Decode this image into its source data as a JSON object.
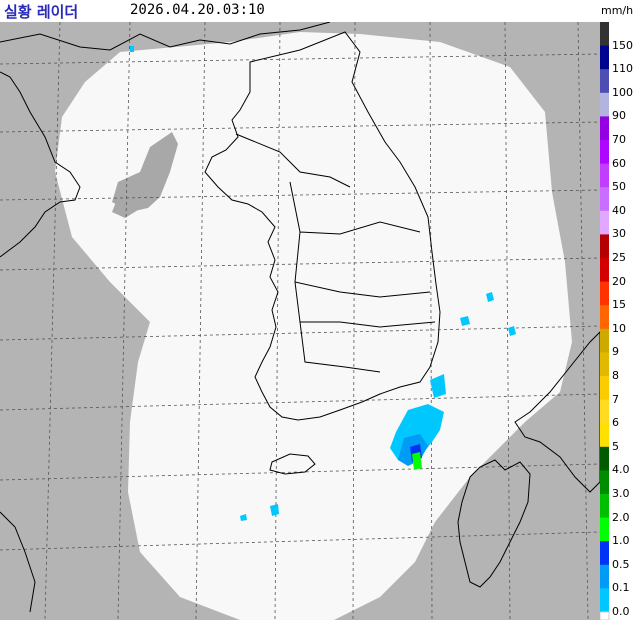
{
  "header": {
    "title": "실황 레이더",
    "timestamp": "2026.04.20.03:10",
    "unit": "mm/h"
  },
  "legend": {
    "items": [
      {
        "label": "150",
        "color": "#333333"
      },
      {
        "label": "110",
        "color": "#000390"
      },
      {
        "label": "100",
        "color": "#4c4eb1"
      },
      {
        "label": "90",
        "color": "#b3b4de"
      },
      {
        "label": "70",
        "color": "#9300e4"
      },
      {
        "label": "60",
        "color": "#ad07ff"
      },
      {
        "label": "50",
        "color": "#c13eff"
      },
      {
        "label": "40",
        "color": "#c96eff"
      },
      {
        "label": "30",
        "color": "#e0a9ff"
      },
      {
        "label": "25",
        "color": "#b40000"
      },
      {
        "label": "20",
        "color": "#d20000"
      },
      {
        "label": "15",
        "color": "#ff3200"
      },
      {
        "label": "10",
        "color": "#ff6600"
      },
      {
        "label": "9",
        "color": "#ccaa00"
      },
      {
        "label": "8",
        "color": "#e0b900"
      },
      {
        "label": "7",
        "color": "#f9cd00"
      },
      {
        "label": "6",
        "color": "#ffdc1f"
      },
      {
        "label": "5",
        "color": "#ffe100"
      },
      {
        "label": "4.0",
        "color": "#005a00"
      },
      {
        "label": "3.0",
        "color": "#008c00"
      },
      {
        "label": "2.0",
        "color": "#00be00"
      },
      {
        "label": "1.0",
        "color": "#00ff00"
      },
      {
        "label": "0.5",
        "color": "#0033f5"
      },
      {
        "label": "0.1",
        "color": "#009bf5"
      },
      {
        "label": "0.0",
        "color": "#00c8ff"
      }
    ],
    "zero_color": "#ffffff"
  },
  "map": {
    "background_color": "#b4b4b4",
    "coverage_color": "#f8f8f8",
    "clutter_color": "#a8a8a8",
    "coast_color": "#000000",
    "grid_color": "#555555"
  }
}
